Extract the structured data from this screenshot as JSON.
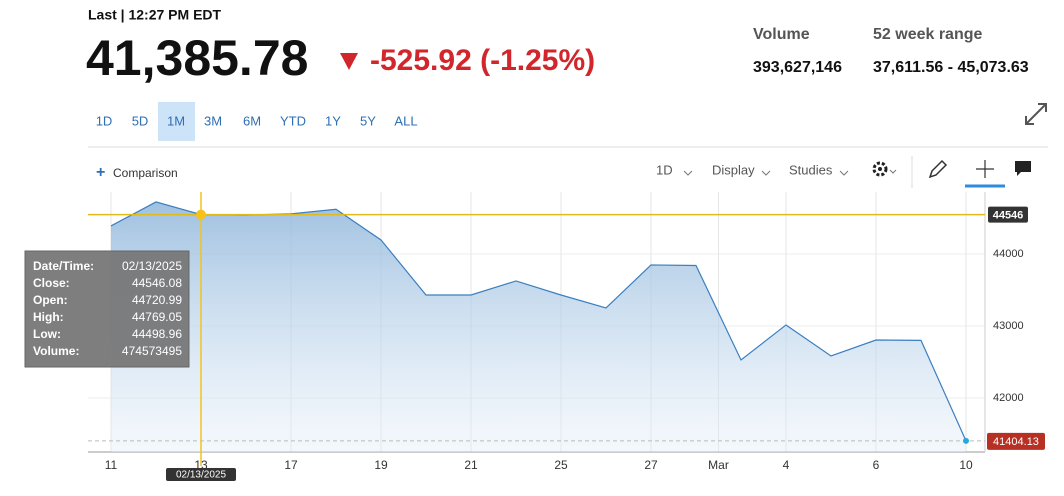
{
  "header": {
    "last_label": "Last | 12:27 PM EDT",
    "price": "41,385.78",
    "change": "-525.92 (-1.25%)",
    "stats": [
      {
        "label": "Volume",
        "value": "393,627,146"
      },
      {
        "label": "52 week range",
        "value": "37,611.56 - 45,073.63"
      }
    ]
  },
  "range_tabs": [
    "1D",
    "5D",
    "1M",
    "3M",
    "6M",
    "YTD",
    "1Y",
    "5Y",
    "ALL"
  ],
  "active_tab": "1M",
  "toolbar": {
    "comparison": "Comparison",
    "interval": "1D",
    "display": "Display",
    "studies": "Studies"
  },
  "chart": {
    "type": "line",
    "color": "#3a7fc0",
    "categories": [
      "11",
      null,
      "13",
      null,
      "17",
      null,
      "19",
      null,
      "21",
      null,
      "25",
      null,
      "27",
      null,
      null,
      "4",
      null,
      "6",
      null,
      "10"
    ],
    "values": [
      44389,
      44722,
      44546.08,
      44540,
      44556,
      44620,
      44194,
      43430,
      43430,
      43625,
      43430,
      43250,
      43847,
      43840,
      42528,
      43014,
      42583,
      42805,
      42800,
      41404.13
    ],
    "xticks": [
      {
        "value": 0,
        "label": "11"
      },
      {
        "value": 2,
        "label": "13"
      },
      {
        "value": 4,
        "label": "17"
      },
      {
        "value": 6,
        "label": "19"
      },
      {
        "value": 8,
        "label": "21"
      },
      {
        "value": 10,
        "label": "25"
      },
      {
        "value": 12,
        "label": "27"
      },
      {
        "value": 13.5,
        "label": "Mar"
      },
      {
        "value": 15,
        "label": "4"
      },
      {
        "value": 17,
        "label": "6"
      },
      {
        "value": 19,
        "label": "10"
      }
    ],
    "ylim": [
      41250,
      44860
    ],
    "yticks": [
      42000,
      43000,
      44000
    ],
    "grid": true,
    "crosshair": {
      "index": 2,
      "value": 44546,
      "date_label": "02/13/2025"
    },
    "last": {
      "value": 41404.13,
      "label": "41404.13"
    },
    "tooltip": [
      [
        "Date/Time:",
        "02/13/2025"
      ],
      [
        "Close:",
        "44546.08"
      ],
      [
        "Open:",
        "44720.99"
      ],
      [
        "High:",
        "44769.05"
      ],
      [
        "Low:",
        "44498.96"
      ],
      [
        "Volume:",
        "474573495"
      ]
    ]
  }
}
